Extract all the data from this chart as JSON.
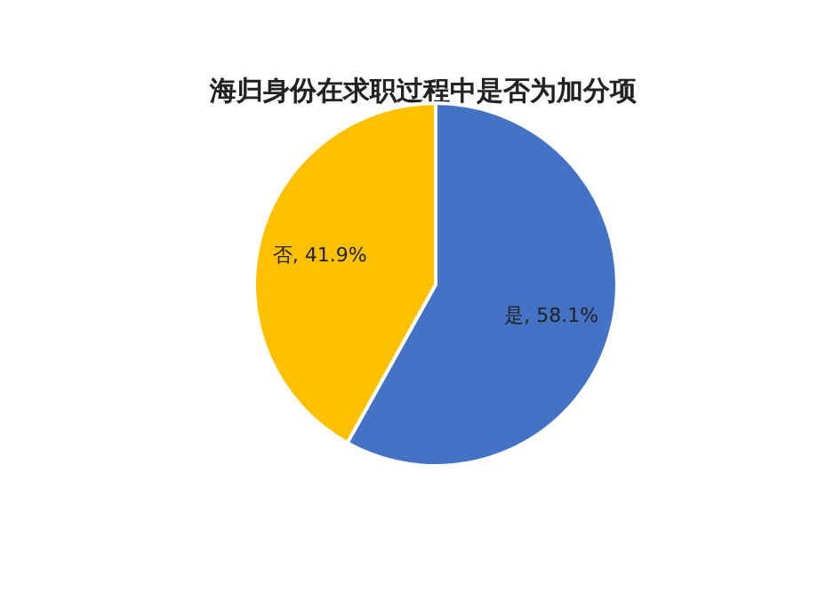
{
  "chart_data": {
    "type": "pie",
    "title": "海归身份在求职过程中是否为加分项",
    "categories": [
      "是",
      "否"
    ],
    "values": [
      58.1,
      41.9
    ],
    "colors": [
      "#4472c4",
      "#ffc000"
    ],
    "value_labels": [
      ", 58.1%",
      ", 41.9%"
    ]
  }
}
